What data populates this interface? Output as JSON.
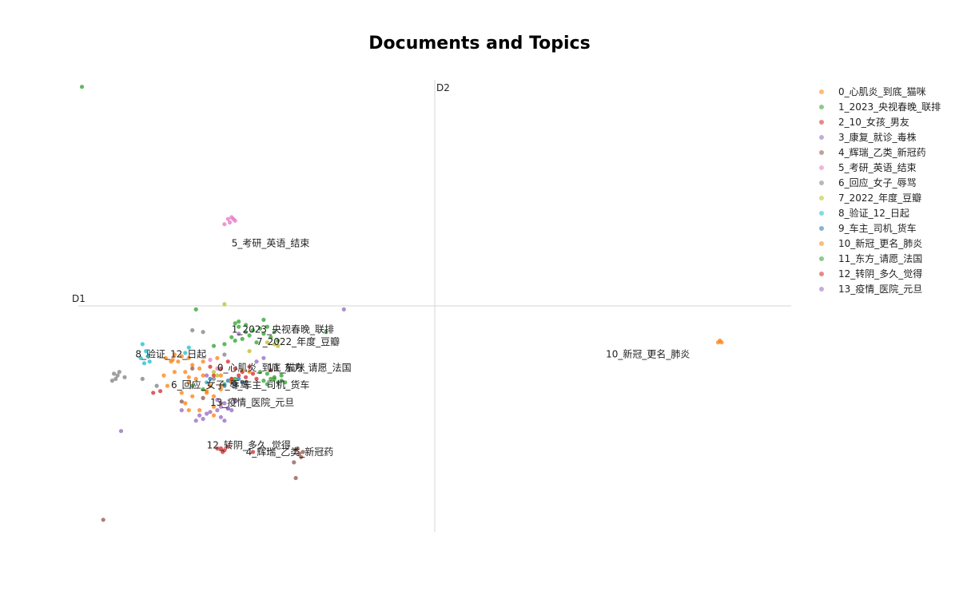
{
  "chart_data": {
    "type": "scatter",
    "title": "Documents and Topics",
    "xlabel": "D1",
    "ylabel": "D2",
    "xlim": [
      -10,
      10
    ],
    "ylim": [
      -6.5,
      6.5
    ],
    "grid": false,
    "legend_position": "right",
    "series": [
      {
        "name": "0_心肌炎_到底_猫咪",
        "color": "#ff7f0e",
        "label_text": "0_心肌炎_到底_猫咪",
        "label_pos": [
          -6.1,
          -1.87
        ],
        "points": [
          [
            -7.3,
            -1.4
          ],
          [
            -7.1,
            -1.45
          ],
          [
            -6.9,
            -1.5
          ],
          [
            -7.2,
            -1.6
          ],
          [
            -6.8,
            -1.7
          ],
          [
            -6.6,
            -1.8
          ],
          [
            -7.0,
            -1.9
          ],
          [
            -6.5,
            -2.0
          ],
          [
            -6.7,
            -2.1
          ],
          [
            -6.9,
            -2.2
          ],
          [
            -6.3,
            -2.3
          ],
          [
            -6.4,
            -2.5
          ],
          [
            -6.8,
            -2.6
          ],
          [
            -7.0,
            -2.8
          ],
          [
            -6.2,
            -2.9
          ],
          [
            -6.6,
            -3.0
          ],
          [
            -6.5,
            -1.6
          ],
          [
            -7.3,
            -1.9
          ],
          [
            -7.5,
            -2.3
          ],
          [
            -6.0,
            -2.4
          ],
          [
            -6.1,
            -1.5
          ],
          [
            -6.9,
            -3.0
          ],
          [
            -6.2,
            -3.15
          ],
          [
            8.0,
            -1.0
          ],
          [
            8.05,
            -1.05
          ],
          [
            7.95,
            -1.05
          ],
          [
            -5.7,
            -2.1
          ],
          [
            -6.0,
            -2.0
          ],
          [
            -7.4,
            -1.6
          ],
          [
            -7.1,
            -2.5
          ]
        ]
      },
      {
        "name": "1_2023_央视春晚_联排",
        "color": "#2ca02c",
        "label_text": "1_2023_央视春晚_联排",
        "label_pos": [
          -5.7,
          -0.77
        ],
        "points": [
          [
            -5.6,
            -0.5
          ],
          [
            -5.5,
            -0.6
          ],
          [
            -5.3,
            -0.55
          ],
          [
            -5.1,
            -0.7
          ],
          [
            -4.9,
            -0.65
          ],
          [
            -4.7,
            -0.6
          ],
          [
            -4.8,
            -0.8
          ],
          [
            -5.2,
            -0.85
          ],
          [
            -5.4,
            -0.95
          ],
          [
            -5.6,
            -1.0
          ],
          [
            -5.0,
            -1.05
          ],
          [
            -4.6,
            -0.9
          ],
          [
            -4.5,
            -0.75
          ],
          [
            -4.4,
            -1.0
          ],
          [
            -5.7,
            -0.9
          ],
          [
            -5.9,
            -1.1
          ],
          [
            -5.5,
            -0.45
          ],
          [
            -4.8,
            -0.4
          ],
          [
            -6.2,
            -1.15
          ],
          [
            -3.05,
            -0.75
          ],
          [
            -6.7,
            -0.1
          ],
          [
            -4.3,
            -2.0
          ],
          [
            -4.5,
            -2.1
          ],
          [
            -4.7,
            -1.95
          ],
          [
            -4.4,
            -2.2
          ],
          [
            -4.9,
            -1.9
          ],
          [
            -5.6,
            -2.1
          ],
          [
            -5.9,
            -2.25
          ],
          [
            -4.8,
            -2.15
          ],
          [
            -5.3,
            -0.75
          ]
        ]
      },
      {
        "name": "2_10_女孩_男友",
        "color": "#d62728",
        "label_text": "",
        "label_pos": [
          0,
          0
        ],
        "points": [
          [
            -5.6,
            -1.8
          ],
          [
            -5.4,
            -1.9
          ],
          [
            -5.2,
            -1.75
          ],
          [
            -5.5,
            -2.0
          ],
          [
            -5.7,
            -2.1
          ],
          [
            -5.3,
            -2.05
          ],
          [
            -5.1,
            -1.95
          ],
          [
            -6.0,
            -1.8
          ],
          [
            -5.8,
            -1.6
          ],
          [
            -6.2,
            -2.0
          ],
          [
            -5.0,
            -2.1
          ]
        ]
      },
      {
        "name": "3_康复_就诊_毒株",
        "color": "#9467bd",
        "label_text": "",
        "label_pos": [
          0,
          0
        ],
        "points": [
          [
            -6.6,
            -3.15
          ],
          [
            -6.5,
            -3.25
          ],
          [
            -6.4,
            -3.1
          ],
          [
            -6.7,
            -3.3
          ],
          [
            -6.3,
            -3.05
          ],
          [
            -6.0,
            -3.2
          ],
          [
            -5.9,
            -3.3
          ],
          [
            -6.1,
            -3.0
          ],
          [
            -5.8,
            -2.95
          ],
          [
            -2.55,
            -0.1
          ],
          [
            -8.8,
            -3.6
          ],
          [
            -4.8,
            -1.5
          ],
          [
            -5.0,
            -1.6
          ]
        ]
      },
      {
        "name": "4_辉瑞_乙类_新冠药",
        "color": "#8c564b",
        "label_text": "4_辉瑞_乙类_新冠药",
        "label_pos": [
          -5.3,
          -4.3
        ],
        "points": [
          [
            -3.9,
            -4.15
          ],
          [
            -3.8,
            -4.25
          ],
          [
            -3.7,
            -4.2
          ],
          [
            -3.75,
            -4.35
          ],
          [
            -3.85,
            -4.1
          ],
          [
            -3.95,
            -4.5
          ],
          [
            -3.9,
            -4.95
          ],
          [
            -9.3,
            -6.15
          ],
          [
            -7.1,
            -2.75
          ],
          [
            -6.5,
            -2.65
          ],
          [
            -6.0,
            -2.8
          ],
          [
            -5.6,
            -2.7
          ],
          [
            -6.8,
            -1.8
          ]
        ]
      },
      {
        "name": "5_考研_英语_结束",
        "color": "#e377c2",
        "label_text": "5_考研_英语_结束",
        "label_pos": [
          -5.7,
          1.71
        ],
        "points": [
          [
            -5.8,
            2.5
          ],
          [
            -5.7,
            2.55
          ],
          [
            -5.6,
            2.45
          ],
          [
            -5.75,
            2.4
          ],
          [
            -5.65,
            2.5
          ],
          [
            -5.9,
            2.35
          ],
          [
            -6.3,
            -1.55
          ],
          [
            -6.1,
            -1.8
          ]
        ]
      },
      {
        "name": "6_回应_女子_辱骂",
        "color": "#7f7f7f",
        "label_text": "6_回应_女子_辱骂",
        "label_pos": [
          -7.4,
          -2.37
        ],
        "points": [
          [
            -9.0,
            -1.95
          ],
          [
            -8.9,
            -2.0
          ],
          [
            -8.95,
            -2.1
          ],
          [
            -9.05,
            -2.15
          ],
          [
            -8.85,
            -1.9
          ],
          [
            -8.7,
            -2.05
          ],
          [
            -8.2,
            -2.1
          ],
          [
            -7.8,
            -2.3
          ],
          [
            -6.2,
            -2.1
          ],
          [
            -5.9,
            -1.4
          ],
          [
            -6.8,
            -0.7
          ],
          [
            -6.5,
            -0.75
          ]
        ]
      },
      {
        "name": "7_2022_年度_豆瓣",
        "color": "#bcbd22",
        "label_text": "7_2022_年度_豆瓣",
        "label_pos": [
          -5.0,
          -1.12
        ],
        "points": [
          [
            -5.9,
            0.05
          ],
          [
            -4.5,
            -1.1
          ],
          [
            -4.7,
            -1.05
          ],
          [
            -4.4,
            -1.15
          ],
          [
            -6.2,
            -1.9
          ],
          [
            -6.1,
            -2.0
          ],
          [
            -5.2,
            -1.3
          ]
        ]
      },
      {
        "name": "8_验证_12_日起",
        "color": "#17becf",
        "label_text": "8_验证_12_日起",
        "label_pos": [
          -8.4,
          -1.48
        ],
        "points": [
          [
            -8.2,
            -1.1
          ],
          [
            -8.1,
            -1.3
          ],
          [
            -8.05,
            -1.45
          ],
          [
            -8.0,
            -1.6
          ],
          [
            -8.25,
            -1.5
          ],
          [
            -8.15,
            -1.65
          ],
          [
            -7.0,
            -1.35
          ],
          [
            -6.9,
            -1.2
          ],
          [
            -6.4,
            -2.2
          ]
        ]
      },
      {
        "name": "9_车主_司机_货车",
        "color": "#1f77b4",
        "label_text": "9_车主_司机_货车",
        "label_pos": [
          -5.7,
          -2.37
        ],
        "points": [
          [
            -5.8,
            -2.15
          ],
          [
            -5.7,
            -2.2
          ],
          [
            -5.6,
            -2.25
          ],
          [
            -5.9,
            -2.3
          ],
          [
            -5.5,
            -2.1
          ],
          [
            -5.4,
            -2.2
          ],
          [
            -6.3,
            -2.1
          ]
        ]
      },
      {
        "name": "10_新冠_更名_肺炎",
        "color": "#ff7f0e",
        "label_text": "10_新冠_更名_肺炎",
        "label_pos": [
          4.8,
          -1.48
        ],
        "points": [
          [
            -7.55,
            -1.5
          ],
          [
            -7.35,
            -1.55
          ],
          [
            -6.0,
            -2.3
          ],
          [
            -5.7,
            -2.2
          ],
          [
            -6.4,
            -2.45
          ],
          [
            -6.9,
            -2.05
          ],
          [
            -5.4,
            -1.85
          ],
          [
            -5.2,
            -1.9
          ],
          [
            -6.2,
            -2.6
          ],
          [
            -7.6,
            -2.0
          ]
        ]
      },
      {
        "name": "11_东方_请愿_法国",
        "color": "#2ca02c",
        "label_text": "11_东方_请愿_法国",
        "label_pos": [
          -4.7,
          -1.87
        ],
        "points": [
          [
            -4.6,
            -2.1
          ],
          [
            -4.3,
            -2.15
          ],
          [
            -4.5,
            -2.05
          ],
          [
            -4.2,
            -2.2
          ],
          [
            -4.7,
            -2.25
          ],
          [
            -9.9,
            6.3
          ],
          [
            -6.5,
            -2.4
          ],
          [
            -6.8,
            -2.3
          ]
        ]
      },
      {
        "name": "12_转阴_多久_觉得",
        "color": "#d62728",
        "label_text": "12_转阴_多久_觉得",
        "label_pos": [
          -6.4,
          -4.1
        ],
        "points": [
          [
            -6.0,
            -4.1
          ],
          [
            -5.9,
            -4.15
          ],
          [
            -5.8,
            -4.05
          ],
          [
            -5.95,
            -4.2
          ],
          [
            -6.1,
            -4.1
          ],
          [
            -5.1,
            -4.2
          ],
          [
            -7.9,
            -2.5
          ],
          [
            -7.7,
            -2.45
          ],
          [
            -6.3,
            -1.75
          ],
          [
            -4.6,
            -1.85
          ]
        ]
      },
      {
        "name": "13_疫情_医院_元旦",
        "color": "#9467bd",
        "label_text": "13_疫情_医院_元旦",
        "label_pos": [
          -6.3,
          -2.87
        ],
        "points": [
          [
            -5.9,
            -2.8
          ],
          [
            -6.0,
            -2.9
          ],
          [
            -5.8,
            -2.95
          ],
          [
            -6.1,
            -2.7
          ],
          [
            -5.7,
            -3.0
          ],
          [
            -5.6,
            -2.75
          ],
          [
            -7.1,
            -3.0
          ],
          [
            -6.4,
            -2.0
          ],
          [
            -5.5,
            -0.8
          ]
        ]
      }
    ]
  }
}
